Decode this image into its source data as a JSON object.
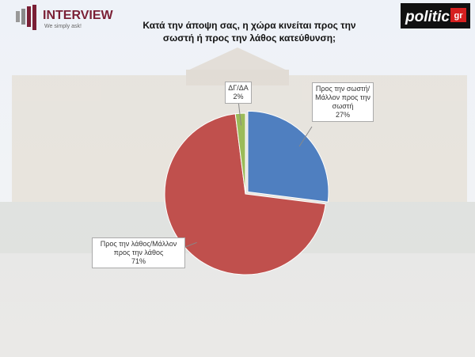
{
  "branding": {
    "pollster": "INTERVIEW",
    "slogan": "We simply ask!",
    "outlet": "politic",
    "outlet_suffix": "gr"
  },
  "chart_data": {
    "type": "pie",
    "title": "Κατά την άποψη σας, η χώρα κινείται προς την σωστή ή προς την λάθος κατεύθυνση;",
    "categories": [
      "Προς την σωστή/Μάλλον προς την σωστή",
      "Προς την λάθος/Μάλλον προς την λάθος",
      "ΔΓ/ΔΑ"
    ],
    "values": [
      27,
      71,
      2
    ],
    "value_labels": [
      "27%",
      "71%",
      "2%"
    ],
    "colors": [
      "#4f7fc0",
      "#c0504d",
      "#9bbb59"
    ]
  }
}
